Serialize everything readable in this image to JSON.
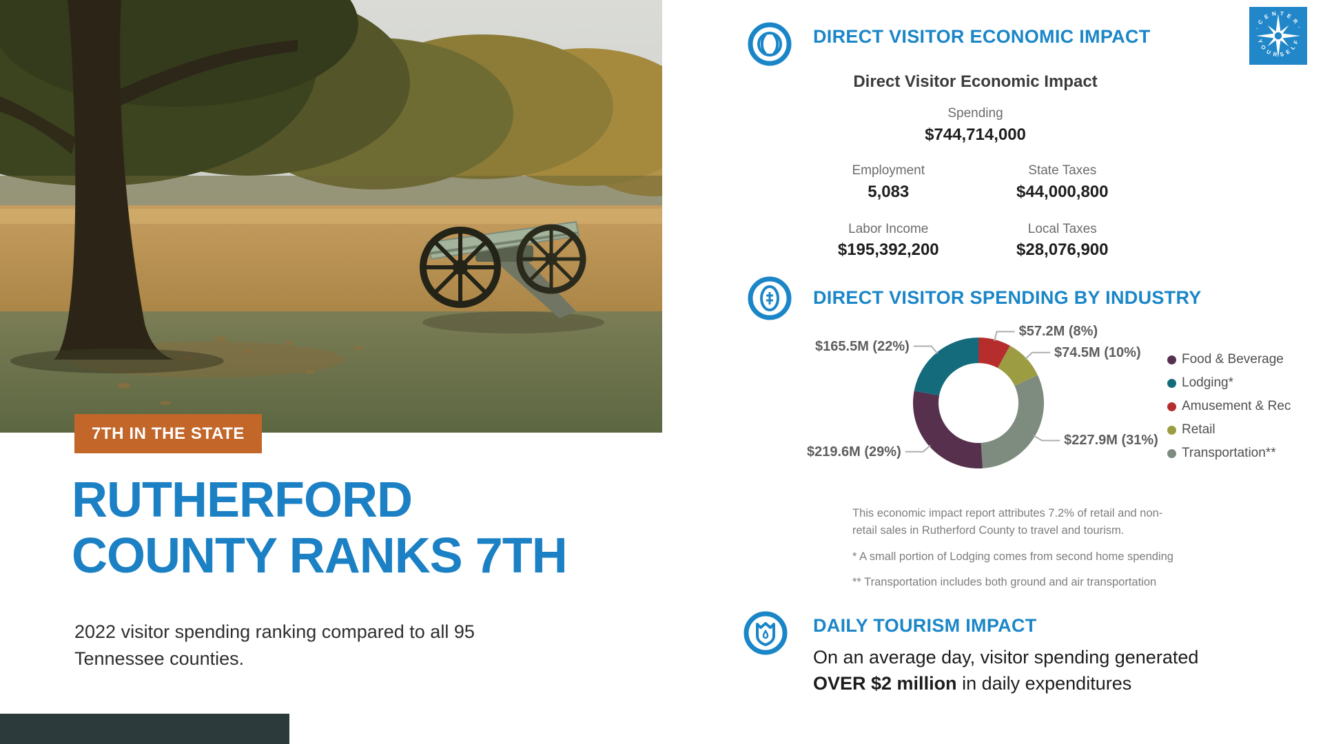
{
  "colors": {
    "accent_blue": "#1a86c8",
    "badge_orange": "#c2662a",
    "headline_blue": "#1b80c4",
    "footer_bar": "#2d3a3b"
  },
  "icons": {
    "section1": "ball-circle-icon",
    "section2": "coin-circle-icon",
    "section3": "shield-circle-icon",
    "logo": "compass-rose-logo"
  },
  "left": {
    "badge": "7TH IN THE STATE",
    "headline_line1": "RUTHERFORD",
    "headline_line2": "COUNTY RANKS 7TH",
    "subtitle": "2022 visitor spending ranking compared to all 95 Tennessee counties."
  },
  "logo": {
    "text_top": "· C E N T E R ·",
    "text_bottom": "Y O U R S E L F"
  },
  "sections": {
    "economic_impact": {
      "header": "DIRECT VISITOR ECONOMIC IMPACT"
    },
    "spending_by_industry": {
      "header": "DIRECT VISITOR SPENDING BY INDUSTRY",
      "notes": [
        "This economic impact report attributes 7.2% of retail and non-retail sales in Rutherford County to travel and tourism.",
        "* A small portion of Lodging comes from second home spending",
        "** Transportation includes both ground and air transportation"
      ]
    },
    "daily_impact": {
      "header": "DAILY TOURISM IMPACT",
      "line1": "On an average day, visitor spending generated",
      "bold": "OVER $2 million",
      "suffix": " in daily expenditures"
    }
  },
  "chart_data": [
    {
      "type": "table",
      "title": "Direct Visitor Economic Impact",
      "stats": [
        {
          "label": "Spending",
          "value": "$744,714,000"
        },
        {
          "label": "Employment",
          "value": "5,083"
        },
        {
          "label": "State Taxes",
          "value": "$44,000,800"
        },
        {
          "label": "Labor Income",
          "value": "$195,392,200"
        },
        {
          "label": "Local Taxes",
          "value": "$28,076,900"
        }
      ]
    },
    {
      "type": "pie",
      "subtype": "donut",
      "title": "Direct Visitor Spending by Industry",
      "start_angle_deg": 0,
      "direction": "clockwise",
      "series": [
        {
          "name": "Amusement & Rec",
          "label": "$57.2M (8%)",
          "value_musd": 57.2,
          "pct": 8,
          "color": "#b62d2e"
        },
        {
          "name": "Retail",
          "label": "$74.5M (10%)",
          "value_musd": 74.5,
          "pct": 10,
          "color": "#9c9c43"
        },
        {
          "name": "Transportation**",
          "label": "$227.9M (31%)",
          "value_musd": 227.9,
          "pct": 31,
          "color": "#7e8b7f"
        },
        {
          "name": "Food & Beverage",
          "label": "$219.6M (29%)",
          "value_musd": 219.6,
          "pct": 29,
          "color": "#56304d"
        },
        {
          "name": "Lodging*",
          "label": "$165.5M (22%)",
          "value_musd": 165.5,
          "pct": 22,
          "color": "#146b7c"
        }
      ],
      "legend_position": "right",
      "legend": [
        {
          "label": "Food & Beverage",
          "color": "#56304d"
        },
        {
          "label": "Lodging*",
          "color": "#146b7c"
        },
        {
          "label": "Amusement & Rec",
          "color": "#b62d2e"
        },
        {
          "label": "Retail",
          "color": "#9c9c43"
        },
        {
          "label": "Transportation**",
          "color": "#7e8b7f"
        }
      ]
    }
  ]
}
